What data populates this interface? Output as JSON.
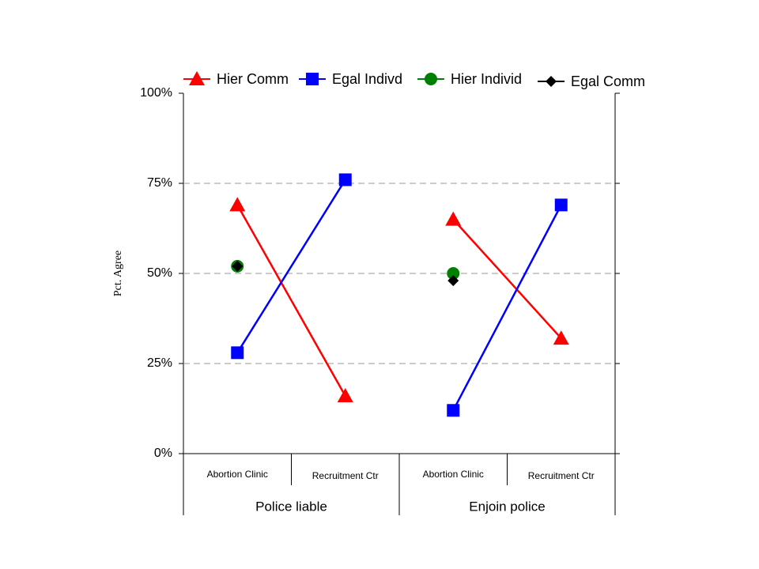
{
  "chart_data": {
    "type": "line",
    "y_label": "Pct. Agree",
    "categories": [
      "Abortion Clinic",
      "Recruitment Ctr",
      "Abortion Clinic",
      "Recruitment Ctr"
    ],
    "groups": [
      "Police liable",
      "Enjoin police"
    ],
    "series": [
      {
        "name": "Hier Comm",
        "color": "#ff0000",
        "marker": "triangle",
        "values": [
          69,
          16,
          65,
          32
        ]
      },
      {
        "name": "Egal Indivd",
        "color": "#0000ff",
        "marker": "square",
        "values": [
          28,
          76,
          12,
          69
        ]
      },
      {
        "name": "Hier Individ",
        "color": "#008000",
        "marker": "circle",
        "values": [
          52,
          null,
          50,
          null
        ]
      },
      {
        "name": "Egal Comm",
        "color": "#000000",
        "marker": "diamond",
        "values": [
          52,
          null,
          48,
          null
        ]
      }
    ],
    "ylim": [
      0,
      100
    ],
    "yticks": [
      {
        "value": 0,
        "label": "0%"
      },
      {
        "value": 25,
        "label": "25%"
      },
      {
        "value": 50,
        "label": "50%"
      },
      {
        "value": 75,
        "label": "75%"
      },
      {
        "value": 100,
        "label": "100%"
      }
    ],
    "grid": true,
    "legend": "top"
  }
}
